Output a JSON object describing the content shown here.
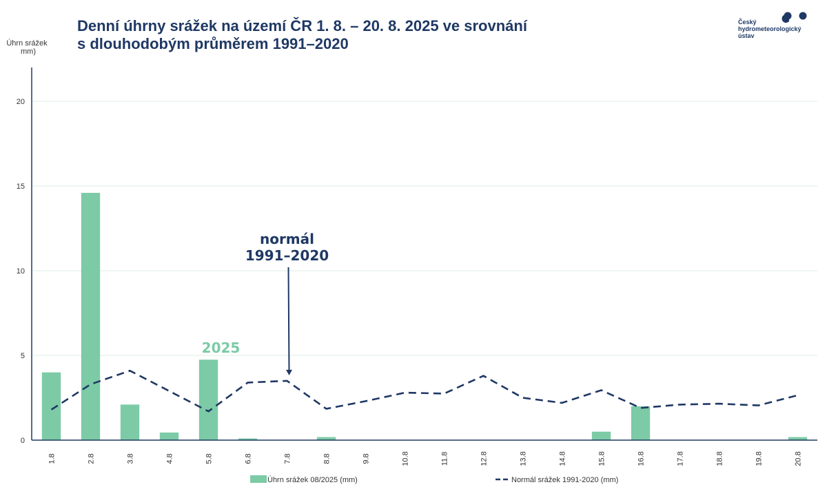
{
  "header": {
    "title_line1": "Denní úhrny srážek na území ČR 1. 8. – 20. 8. 2025 ve srovnání",
    "title_line2": "s dlouhodobým průměrem 1991–2020"
  },
  "logo": {
    "line1": "Český",
    "line2": "hydrometeorologický",
    "line3": "ústav"
  },
  "colors": {
    "bar": "#7ccba6",
    "normal_line": "#1f3864",
    "title": "#1f3864",
    "axis_text": "#333333",
    "grid": "#dceee6"
  },
  "chart_data": {
    "type": "bar",
    "categories": [
      "1.8",
      "2.8",
      "3.8",
      "4.8",
      "5.8",
      "6.8",
      "7.8",
      "8.8",
      "9.8",
      "10.8",
      "11.8",
      "12.8",
      "13.8",
      "14.8",
      "15.8",
      "16.8",
      "17.8",
      "18.8",
      "19.8",
      "20.8"
    ],
    "ylabel_line1": "Úhrn srážek",
    "ylabel_line2": "mm)",
    "ylim": [
      0,
      22
    ],
    "yticks": [
      0,
      5,
      10,
      15,
      20
    ],
    "grid": true,
    "legend_position": "bottom",
    "series": [
      {
        "name": "Úhrn srážek 08/2025 (mm)",
        "type": "bar",
        "values": [
          4.0,
          14.6,
          2.1,
          0.45,
          4.75,
          0.1,
          0.0,
          0.18,
          0.0,
          0.0,
          0.0,
          0.0,
          0.0,
          0.0,
          0.5,
          2.0,
          0.0,
          0.0,
          0.0,
          0.18
        ]
      },
      {
        "name": "Normál srážek 1991-2020 (mm)",
        "type": "line",
        "style": "dashed",
        "values": [
          1.8,
          3.3,
          4.1,
          2.9,
          1.7,
          3.4,
          3.5,
          1.85,
          2.3,
          2.8,
          2.75,
          3.8,
          2.5,
          2.2,
          2.95,
          1.9,
          2.1,
          2.15,
          2.05,
          2.65
        ]
      }
    ],
    "annotations": [
      {
        "id": "normal",
        "line1": "normál",
        "line2": "1991–2020",
        "target_index": 6,
        "target_series": 1
      },
      {
        "id": "year",
        "text": "2025",
        "target_index": 4,
        "target_series": 0
      }
    ]
  }
}
